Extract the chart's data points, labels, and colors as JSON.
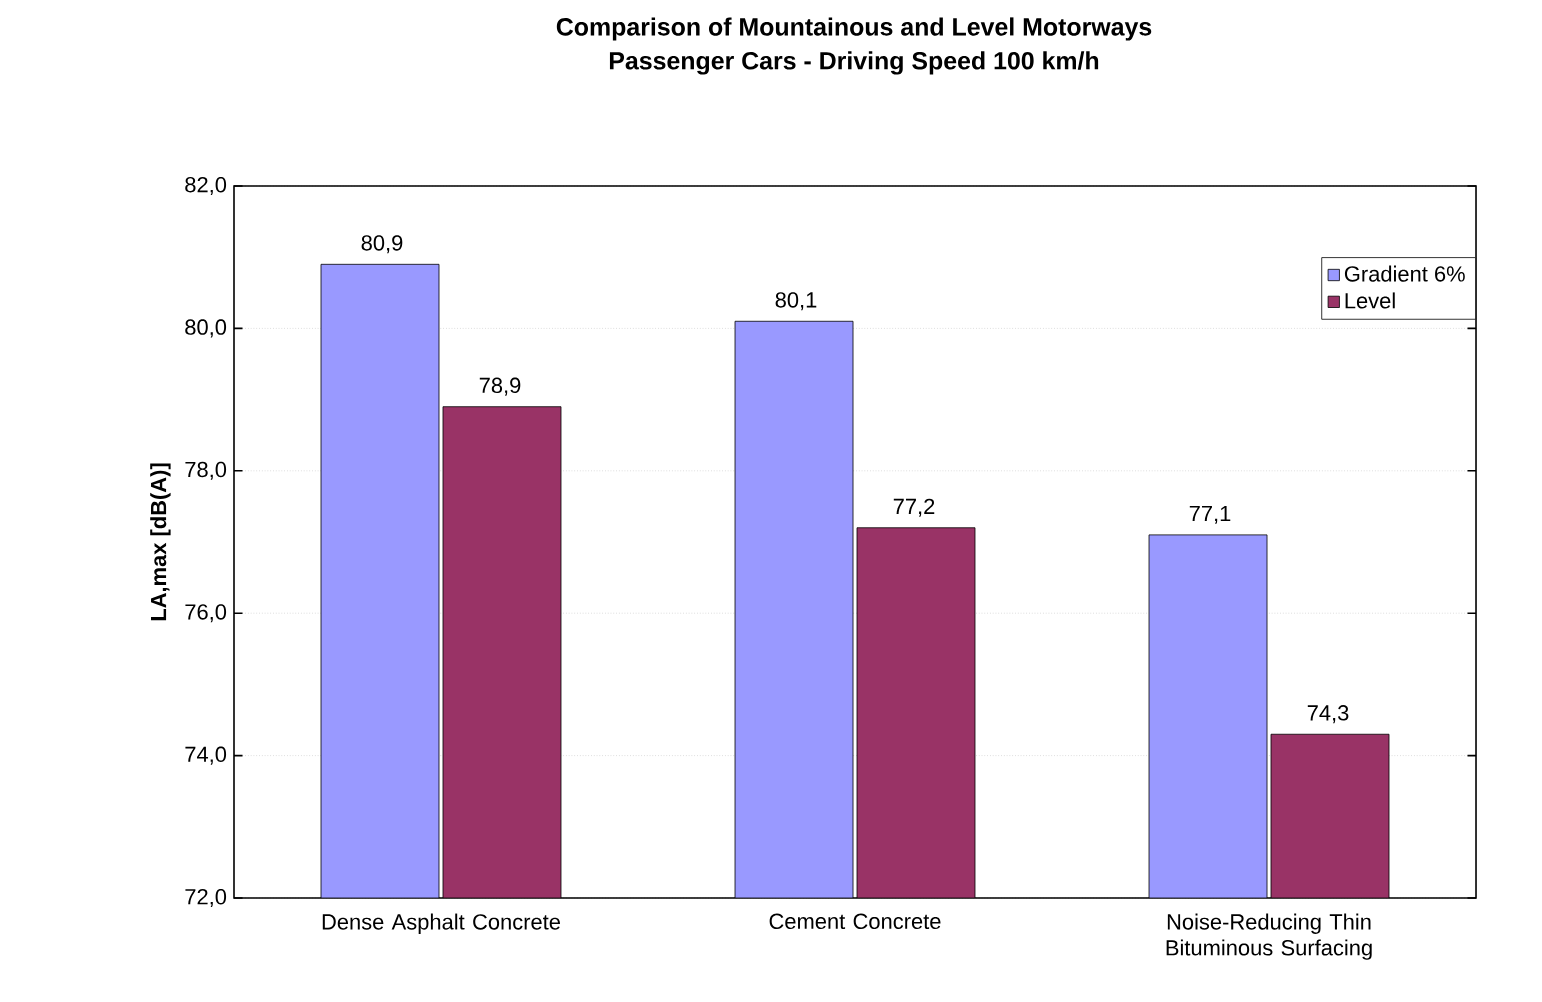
{
  "chart_data": {
    "type": "bar",
    "title": "Comparison of Mountainous and Level Motorways",
    "subtitle": "Passenger Cars - Driving Speed 100 km/h",
    "ylabel": "LA,max [dB(A)]",
    "categories": [
      "Dense Asphalt Concrete",
      "Cement Concrete",
      "Noise-Reducing Thin Bituminous Surfacing"
    ],
    "series": [
      {
        "name": "Gradient 6%",
        "color": "#9999ff",
        "values": [
          80.9,
          80.1,
          77.1
        ],
        "value_labels": [
          "80,9",
          "80,1",
          "77,1"
        ]
      },
      {
        "name": "Level",
        "color": "#993366",
        "values": [
          78.9,
          77.2,
          74.3
        ],
        "value_labels": [
          "78,9",
          "77,2",
          "74,3"
        ]
      }
    ],
    "ylim": [
      72,
      82
    ],
    "yticks": [
      {
        "value": 72,
        "label": "72,0"
      },
      {
        "value": 74,
        "label": "74,0"
      },
      {
        "value": 76,
        "label": "76,0"
      },
      {
        "value": 78,
        "label": "78,0"
      },
      {
        "value": 80,
        "label": "80,0"
      },
      {
        "value": 82,
        "label": "82,0"
      }
    ],
    "grid": "y",
    "legend": "top right"
  }
}
